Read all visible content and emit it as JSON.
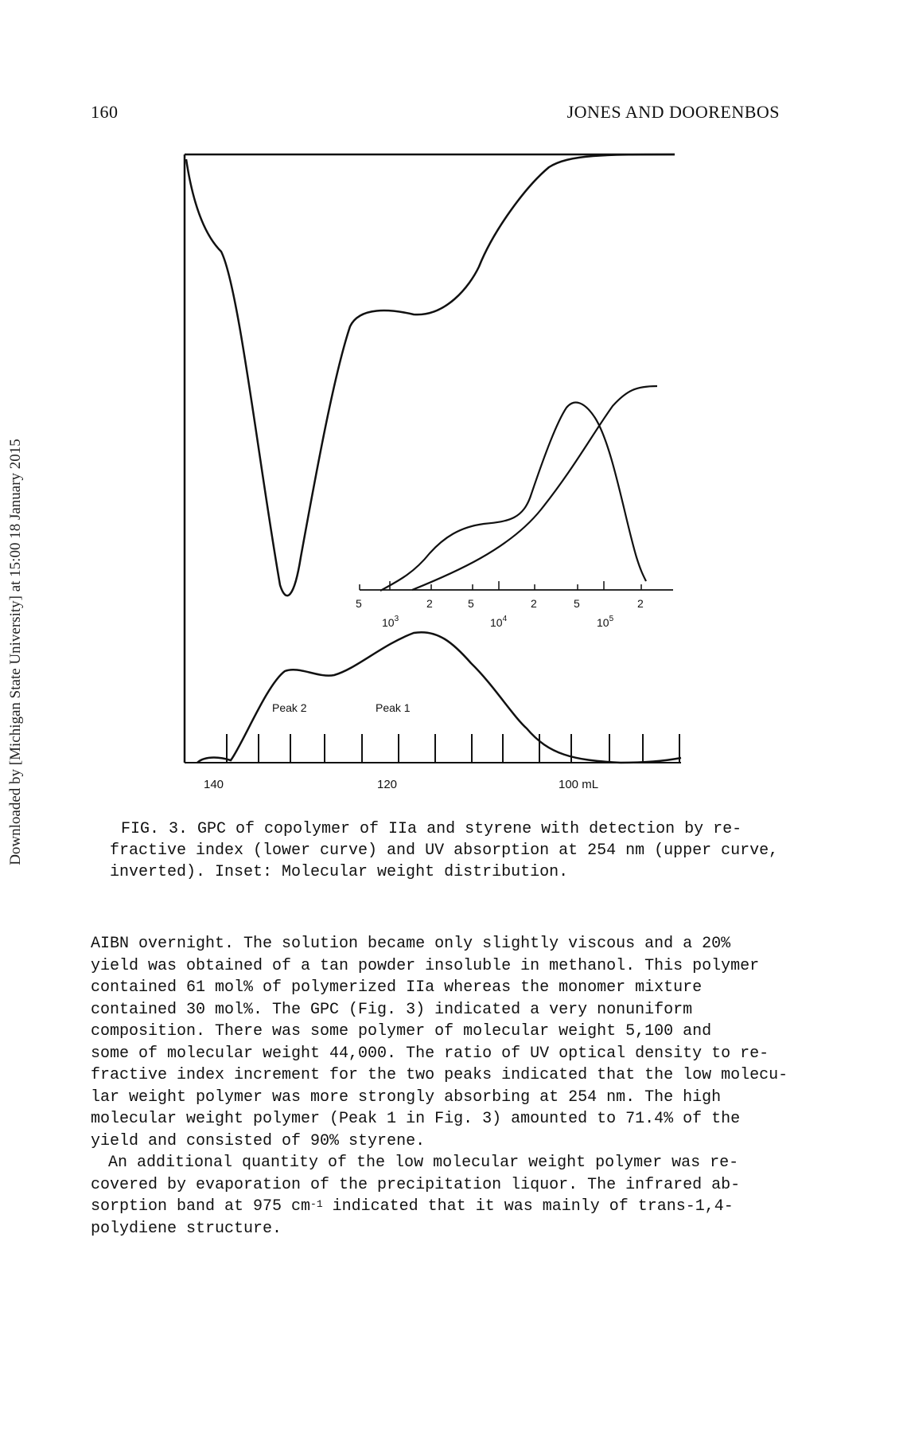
{
  "header": {
    "page_number": "160",
    "running_title": "JONES AND DOORENBOS"
  },
  "side_banner": "Downloaded by [Michigan State University] at 15:00 18 January 2015",
  "figure": {
    "x_axis_labels": [
      "140",
      "120",
      "100 mL"
    ],
    "peak_labels": [
      "Peak 2",
      "Peak 1"
    ],
    "inset_ticks": [
      "5",
      "2",
      "5",
      "2",
      "5",
      "2"
    ],
    "inset_decades": [
      {
        "base": "10",
        "exp": "3"
      },
      {
        "base": "10",
        "exp": "4"
      },
      {
        "base": "10",
        "exp": "5"
      }
    ]
  },
  "caption": {
    "lines": [
      "FIG. 3. GPC of copolymer of IIa and styrene with detection by re-",
      "fractive index (lower curve) and UV absorption at 254 nm (upper curve,",
      "inverted). Inset: Molecular weight distribution."
    ]
  },
  "body": {
    "paragraph1": [
      "AIBN overnight. The solution became only slightly viscous and a 20%",
      "yield was obtained of a tan powder insoluble in methanol. This polymer",
      "contained 61 mol% of polymerized IIa whereas the monomer mixture",
      "contained 30 mol%. The GPC (Fig. 3) indicated a very nonuniform",
      "composition. There was some polymer of molecular weight 5,100 and",
      "some of molecular weight 44,000. The ratio of UV optical density to re-",
      "fractive index increment for the two peaks indicated that the low molecu-",
      "lar weight polymer was more strongly absorbing at 254 nm. The high",
      "molecular weight polymer (Peak 1 in Fig. 3) amounted to 71.4% of the",
      "yield and consisted of 90% styrene."
    ],
    "paragraph2": [
      "An additional quantity of the low molecular weight polymer was re-",
      "covered by evaporation of the precipitation liquor. The infrared ab-",
      "sorption band at 975 cm"
    ],
    "paragraph2_sup": "-1",
    "paragraph2_line3_rest": " indicated that it was mainly of trans-1,4-",
    "paragraph2_tail": [
      "polydiene structure."
    ]
  }
}
